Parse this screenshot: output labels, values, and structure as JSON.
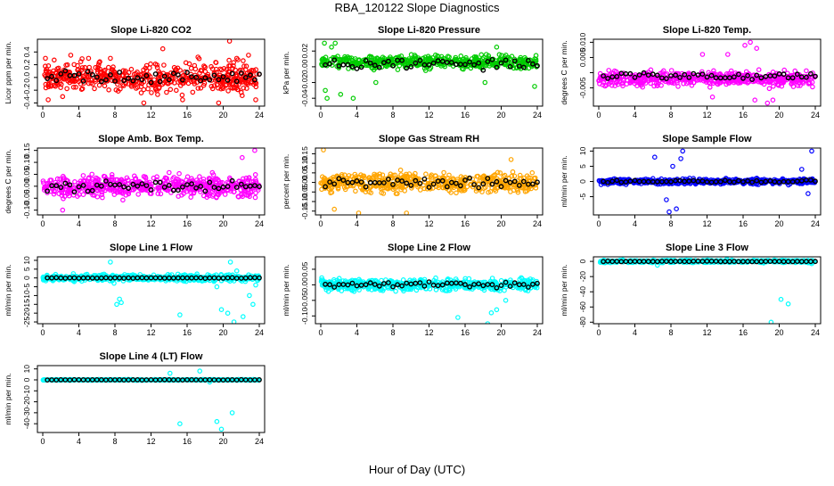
{
  "figure": {
    "title": "RBA_120122  Slope Diagnostics",
    "xlabel": "Hour of Day (UTC)"
  },
  "colors": {
    "red": "#ff0000",
    "green": "#00cc00",
    "magenta": "#ff00ff",
    "orange": "#ffa500",
    "blue": "#0000ff",
    "cyan": "#00ffff",
    "black": "#000000"
  },
  "chart_data": [
    {
      "type": "scatter",
      "title": "Slope Li-820 CO2",
      "ylabel": "Licor ppm per min.",
      "color": "red",
      "xlim": [
        0,
        24
      ],
      "ylim": [
        -0.45,
        0.6
      ],
      "xticks": [
        "0",
        "4",
        "8",
        "12",
        "16",
        "20",
        "24"
      ],
      "yticks": [
        -0.4,
        -0.2,
        0.0,
        0.2,
        0.4
      ],
      "yticklabels": [
        "-0.4",
        "-0.2",
        "0.0",
        "0.2",
        "0.4"
      ],
      "spread": 0.2,
      "bias": 0.0,
      "black_spread": 0.15,
      "outliers": [
        [
          0.3,
          0.3
        ],
        [
          0.6,
          -0.35
        ],
        [
          2.2,
          -0.3
        ],
        [
          3.1,
          0.35
        ],
        [
          7.5,
          0.3
        ],
        [
          11.2,
          -0.4
        ],
        [
          13.3,
          0.45
        ],
        [
          15.5,
          -0.35
        ],
        [
          17.2,
          0.32
        ],
        [
          19.5,
          -0.4
        ],
        [
          20.7,
          0.57
        ],
        [
          21.5,
          0.3
        ],
        [
          22.8,
          0.35
        ],
        [
          23.6,
          -0.35
        ]
      ]
    },
    {
      "type": "scatter",
      "title": "Slope Li-820 Pressure",
      "ylabel": "kPa per min.",
      "color": "green",
      "xlim": [
        0,
        24
      ],
      "ylim": [
        -0.05,
        0.035
      ],
      "xticks": [
        "0",
        "4",
        "8",
        "12",
        "16",
        "20",
        "24"
      ],
      "yticks": [
        -0.04,
        -0.02,
        0.0,
        0.02
      ],
      "yticklabels": [
        "-0.04",
        "-0.02",
        "0.00",
        "0.02"
      ],
      "spread": 0.007,
      "bias": 0.006,
      "black_spread": 0.008,
      "outliers": [
        [
          0.4,
          0.03
        ],
        [
          0.7,
          -0.04
        ],
        [
          1.2,
          0.025
        ],
        [
          1.6,
          0.03
        ],
        [
          0.5,
          -0.03
        ],
        [
          2.2,
          -0.035
        ],
        [
          3.6,
          -0.04
        ],
        [
          6.1,
          -0.02
        ],
        [
          18.2,
          -0.02
        ],
        [
          19.5,
          0.025
        ],
        [
          23.7,
          -0.025
        ]
      ]
    },
    {
      "type": "scatter",
      "title": "Slope Li-820 Temp.",
      "ylabel": "degrees C per min.",
      "color": "magenta",
      "xlim": [
        0,
        24
      ],
      "ylim": [
        -0.011,
        0.011
      ],
      "xticks": [
        "0",
        "4",
        "8",
        "12",
        "16",
        "20",
        "24"
      ],
      "yticks": [
        -0.005,
        0.0,
        0.005,
        0.01
      ],
      "yticklabels": [
        "-0.005",
        "",
        "0.005",
        "0.010"
      ],
      "spread": 0.0022,
      "bias": -0.002,
      "black_spread": 0.0015,
      "outliers": [
        [
          16.2,
          0.009
        ],
        [
          16.8,
          0.01
        ],
        [
          17.5,
          0.008
        ],
        [
          17.3,
          -0.009
        ],
        [
          18.7,
          -0.01
        ],
        [
          19.3,
          -0.009
        ],
        [
          11.5,
          0.006
        ],
        [
          12.6,
          -0.008
        ],
        [
          14.3,
          0.006
        ]
      ]
    },
    {
      "type": "scatter",
      "title": "Slope Amb. Box Temp.",
      "ylabel": "degrees C per min.",
      "color": "magenta",
      "xlim": [
        0,
        24
      ],
      "ylim": [
        -0.12,
        0.16
      ],
      "xticks": [
        "0",
        "4",
        "8",
        "12",
        "16",
        "20",
        "24"
      ],
      "yticks": [
        -0.1,
        -0.05,
        0.0,
        0.05,
        0.1,
        0.15
      ],
      "yticklabels": [
        "-0.10",
        "-0.05",
        "0.00",
        "0.05",
        "0.10",
        "0.15"
      ],
      "spread": 0.04,
      "bias": 0.0,
      "black_spread": 0.03,
      "outliers": [
        [
          23.5,
          0.15
        ],
        [
          2.2,
          -0.1
        ],
        [
          22.1,
          0.12
        ]
      ]
    },
    {
      "type": "scatter",
      "title": "Slope Gas Stream RH",
      "ylabel": "percent per min.",
      "color": "orange",
      "xlim": [
        0,
        24
      ],
      "ylim": [
        -0.17,
        0.18
      ],
      "xticks": [
        "0",
        "4",
        "8",
        "12",
        "16",
        "20",
        "24"
      ],
      "yticks": [
        -0.15,
        -0.1,
        -0.05,
        0.0,
        0.05,
        0.1,
        0.15
      ],
      "yticklabels": [
        "-0.15",
        "-0.10",
        "-0.05",
        "0.00",
        "0.05",
        "0.10",
        "0.15"
      ],
      "spread": 0.045,
      "bias": 0.0,
      "black_spread": 0.035,
      "outliers": [
        [
          0.3,
          0.17
        ],
        [
          4.2,
          -0.16
        ],
        [
          9.5,
          -0.16
        ],
        [
          21.1,
          0.12
        ],
        [
          1.5,
          -0.14
        ]
      ]
    },
    {
      "type": "scatter",
      "title": "Slope Sample Flow",
      "ylabel": "ml/min per min.",
      "color": "blue",
      "xlim": [
        0,
        24
      ],
      "ylim": [
        -11,
        11
      ],
      "xticks": [
        "0",
        "4",
        "8",
        "12",
        "16",
        "20",
        "24"
      ],
      "yticks": [
        -5,
        0,
        5,
        10
      ],
      "yticklabels": [
        "-5",
        "0",
        "5",
        "10"
      ],
      "spread": 0.8,
      "bias": 0.0,
      "black_spread": 0.6,
      "outliers": [
        [
          6.2,
          8
        ],
        [
          7.5,
          -6
        ],
        [
          7.8,
          -10
        ],
        [
          8.6,
          -9
        ],
        [
          9.3,
          10
        ],
        [
          9.1,
          7.5
        ],
        [
          8.2,
          5
        ],
        [
          22.5,
          4
        ],
        [
          23.6,
          10
        ],
        [
          23.2,
          -4
        ]
      ]
    },
    {
      "type": "scatter",
      "title": "Slope Line 1 Flow",
      "ylabel": "ml/min per min.",
      "color": "cyan",
      "xlim": [
        0,
        24
      ],
      "ylim": [
        -26,
        12
      ],
      "xticks": [
        "0",
        "4",
        "8",
        "12",
        "16",
        "20",
        "24"
      ],
      "yticks": [
        -25,
        -20,
        -15,
        -10,
        -5,
        0,
        5,
        10
      ],
      "yticklabels": [
        "-25",
        "-20",
        "-15",
        "-10",
        "-5",
        "0",
        "5",
        "10"
      ],
      "spread": 1.6,
      "bias": 0.0,
      "black_spread": 0.3,
      "outliers": [
        [
          7.5,
          9
        ],
        [
          7.9,
          -3
        ],
        [
          8.5,
          -12
        ],
        [
          8.7,
          -14
        ],
        [
          8.2,
          -15
        ],
        [
          15.2,
          -21
        ],
        [
          19.3,
          -5
        ],
        [
          19.8,
          -18
        ],
        [
          20.5,
          -20
        ],
        [
          21.2,
          -25
        ],
        [
          22.2,
          -22
        ],
        [
          23.3,
          -15
        ],
        [
          22.9,
          -10
        ],
        [
          23.6,
          -4
        ],
        [
          20.8,
          9
        ],
        [
          21.5,
          4
        ]
      ]
    },
    {
      "type": "scatter",
      "title": "Slope Line 2 Flow",
      "ylabel": "ml/min per min.",
      "color": "cyan",
      "xlim": [
        0,
        24
      ],
      "ylim": [
        -0.125,
        0.09
      ],
      "xticks": [
        "0",
        "4",
        "8",
        "12",
        "16",
        "20",
        "24"
      ],
      "yticks": [
        -0.1,
        -0.05,
        0.0,
        0.05
      ],
      "yticklabels": [
        "-0.10",
        "-0.05",
        "0.00",
        "0.05"
      ],
      "spread": 0.018,
      "bias": 0.0,
      "black_spread": 0.015,
      "outliers": [
        [
          15.2,
          -0.105
        ],
        [
          18.5,
          -0.125
        ],
        [
          18.9,
          -0.09
        ],
        [
          20.5,
          -0.05
        ],
        [
          19.5,
          -0.08
        ]
      ]
    },
    {
      "type": "scatter",
      "title": "Slope Line 3 Flow",
      "ylabel": "ml/min per min.",
      "color": "cyan",
      "xlim": [
        0,
        24
      ],
      "ylim": [
        -82,
        6
      ],
      "xticks": [
        "0",
        "4",
        "8",
        "12",
        "16",
        "20",
        "24"
      ],
      "yticks": [
        -80,
        -60,
        -40,
        -20,
        0
      ],
      "yticklabels": [
        "-80",
        "-60",
        "-40",
        "-20",
        "0"
      ],
      "spread": 1.5,
      "bias": 0.0,
      "black_spread": 0.5,
      "outliers": [
        [
          0.2,
          0
        ],
        [
          14.2,
          3
        ],
        [
          19.1,
          -80
        ],
        [
          20.2,
          -50
        ],
        [
          21.0,
          -56
        ],
        [
          6.5,
          -5
        ],
        [
          23.6,
          -3
        ]
      ]
    },
    {
      "type": "scatter",
      "title": "Slope Line 4 (LT) Flow",
      "ylabel": "ml/min per min.",
      "color": "cyan",
      "xlim": [
        0,
        24
      ],
      "ylim": [
        -48,
        13
      ],
      "xticks": [
        "0",
        "4",
        "8",
        "12",
        "16",
        "20",
        "24"
      ],
      "yticks": [
        -40,
        -30,
        -20,
        -10,
        0,
        10
      ],
      "yticklabels": [
        "-40",
        "-30",
        "-20",
        "-10",
        "0",
        "10"
      ],
      "spread": 0.3,
      "bias": 0.0,
      "black_spread": 0.2,
      "outliers": [
        [
          14.1,
          6
        ],
        [
          17.4,
          8
        ],
        [
          15.2,
          -40
        ],
        [
          19.3,
          -38
        ],
        [
          19.8,
          -45
        ],
        [
          21.0,
          -30
        ],
        [
          18.5,
          -2
        ]
      ]
    }
  ]
}
